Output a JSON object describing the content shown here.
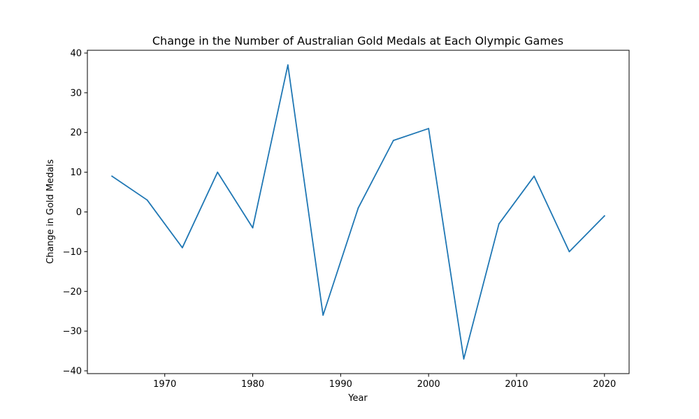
{
  "chart_data": {
    "type": "line",
    "title": "Change in the Number of Australian Gold Medals at Each Olympic Games",
    "xlabel": "Year",
    "ylabel": "Change in Gold Medals",
    "x": [
      1964,
      1968,
      1972,
      1976,
      1980,
      1984,
      1988,
      1992,
      1996,
      2000,
      2004,
      2008,
      2012,
      2016,
      2020
    ],
    "series": [
      {
        "values": [
          9,
          3,
          -9,
          10,
          -4,
          37,
          -26,
          1,
          18,
          21,
          -37,
          -3,
          9,
          -10,
          -1
        ],
        "color": "#1f77b4"
      }
    ],
    "xlim": [
      1961.2,
      2022.8
    ],
    "ylim": [
      -40.7,
      40.7
    ],
    "xticks": [
      1970,
      1980,
      1990,
      2000,
      2010,
      2020
    ],
    "yticks": [
      -40,
      -30,
      -20,
      -10,
      0,
      10,
      20,
      30,
      40
    ],
    "xtick_labels": [
      "1970",
      "1980",
      "1990",
      "2000",
      "2010",
      "2020"
    ],
    "ytick_labels": [
      "−40",
      "−30",
      "−20",
      "−10",
      "0",
      "10",
      "20",
      "30",
      "40"
    ],
    "grid": false,
    "legend": "none"
  }
}
